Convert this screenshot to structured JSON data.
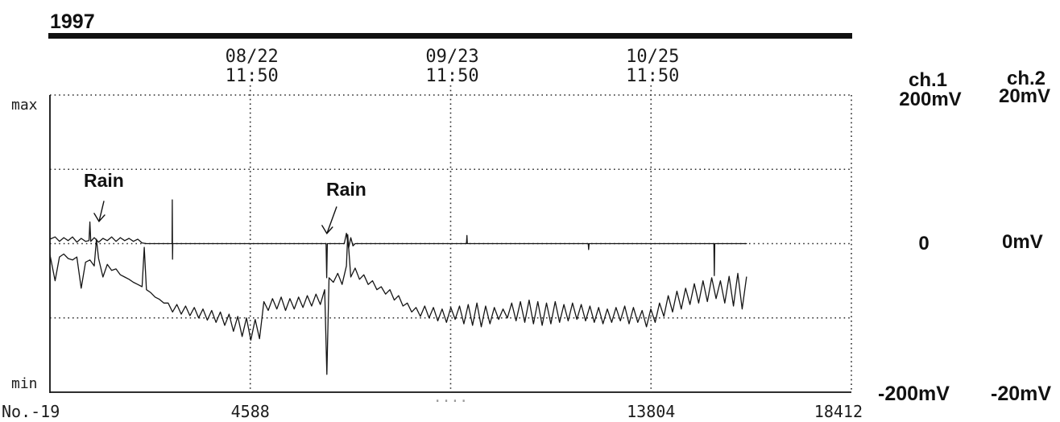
{
  "chart_data": {
    "type": "line",
    "title": "1997",
    "x_range": [
      -19,
      18412
    ],
    "grid": true,
    "legend": "none",
    "y_axis": {
      "max_label": "max",
      "min_label": "min"
    },
    "y_gridlines": [
      200,
      100,
      0,
      -100,
      -200
    ],
    "x_ticks": [
      {
        "value": -19,
        "label": "No.-19"
      },
      {
        "value": 4588,
        "label": "4588"
      },
      {
        "value": 9196,
        "label": "····"
      },
      {
        "value": 13804,
        "label": "13804"
      },
      {
        "value": 18412,
        "label": "18412"
      }
    ],
    "top_ticks": [
      {
        "value": 4588,
        "date": "08/22",
        "time": "11:50"
      },
      {
        "value": 9196,
        "date": "09/23",
        "time": "11:50"
      },
      {
        "value": 13804,
        "date": "10/25",
        "time": "11:50"
      }
    ],
    "annotations": [
      {
        "text": "Rain",
        "x": 1110
      },
      {
        "text": "Rain",
        "x": 6350
      }
    ],
    "series": [
      {
        "name": "ch.1",
        "top_label": "200mV",
        "zero_label": "0",
        "bottom_label": "-200mV",
        "range": [
          -200,
          200
        ],
        "points": [
          [
            -19,
            -15
          ],
          [
            100,
            -50
          ],
          [
            200,
            -18
          ],
          [
            300,
            -14
          ],
          [
            400,
            -20
          ],
          [
            500,
            -22
          ],
          [
            600,
            -18
          ],
          [
            700,
            -60
          ],
          [
            800,
            -25
          ],
          [
            900,
            -22
          ],
          [
            1000,
            -30
          ],
          [
            1050,
            6
          ],
          [
            1100,
            -20
          ],
          [
            1200,
            -45
          ],
          [
            1300,
            -28
          ],
          [
            1400,
            -36
          ],
          [
            1500,
            -34
          ],
          [
            1600,
            -42
          ],
          [
            1700,
            -45
          ],
          [
            1800,
            -48
          ],
          [
            1900,
            -52
          ],
          [
            2000,
            -55
          ],
          [
            2100,
            -58
          ],
          [
            2150,
            -5
          ],
          [
            2200,
            -62
          ],
          [
            2300,
            -66
          ],
          [
            2400,
            -72
          ],
          [
            2500,
            -75
          ],
          [
            2600,
            -80
          ],
          [
            2700,
            -80
          ],
          [
            2800,
            -92
          ],
          [
            2900,
            -82
          ],
          [
            3000,
            -95
          ],
          [
            3100,
            -84
          ],
          [
            3200,
            -97
          ],
          [
            3300,
            -86
          ],
          [
            3400,
            -100
          ],
          [
            3500,
            -88
          ],
          [
            3600,
            -103
          ],
          [
            3700,
            -90
          ],
          [
            3800,
            -106
          ],
          [
            3900,
            -92
          ],
          [
            4000,
            -110
          ],
          [
            4100,
            -95
          ],
          [
            4200,
            -118
          ],
          [
            4300,
            -98
          ],
          [
            4400,
            -125
          ],
          [
            4500,
            -100
          ],
          [
            4600,
            -130
          ],
          [
            4700,
            -102
          ],
          [
            4800,
            -128
          ],
          [
            4900,
            -78
          ],
          [
            5000,
            -90
          ],
          [
            5100,
            -74
          ],
          [
            5200,
            -88
          ],
          [
            5300,
            -72
          ],
          [
            5400,
            -90
          ],
          [
            5500,
            -74
          ],
          [
            5600,
            -88
          ],
          [
            5700,
            -72
          ],
          [
            5800,
            -86
          ],
          [
            5900,
            -70
          ],
          [
            6000,
            -84
          ],
          [
            6100,
            -68
          ],
          [
            6200,
            -82
          ],
          [
            6300,
            -62
          ],
          [
            6350,
            -176
          ],
          [
            6400,
            -46
          ],
          [
            6500,
            -52
          ],
          [
            6600,
            -40
          ],
          [
            6700,
            -55
          ],
          [
            6800,
            -30
          ],
          [
            6830,
            12
          ],
          [
            6900,
            -45
          ],
          [
            7000,
            -33
          ],
          [
            7100,
            -48
          ],
          [
            7200,
            -42
          ],
          [
            7300,
            -55
          ],
          [
            7400,
            -50
          ],
          [
            7500,
            -62
          ],
          [
            7600,
            -58
          ],
          [
            7700,
            -68
          ],
          [
            7800,
            -62
          ],
          [
            7900,
            -76
          ],
          [
            8000,
            -70
          ],
          [
            8100,
            -84
          ],
          [
            8200,
            -80
          ],
          [
            8300,
            -92
          ],
          [
            8400,
            -86
          ],
          [
            8500,
            -98
          ],
          [
            8600,
            -84
          ],
          [
            8700,
            -100
          ],
          [
            8800,
            -86
          ],
          [
            8900,
            -104
          ],
          [
            9000,
            -88
          ],
          [
            9100,
            -106
          ],
          [
            9200,
            -86
          ],
          [
            9300,
            -102
          ],
          [
            9400,
            -84
          ],
          [
            9500,
            -108
          ],
          [
            9600,
            -82
          ],
          [
            9700,
            -110
          ],
          [
            9800,
            -80
          ],
          [
            9900,
            -112
          ],
          [
            10000,
            -84
          ],
          [
            10100,
            -108
          ],
          [
            10200,
            -86
          ],
          [
            10300,
            -102
          ],
          [
            10400,
            -88
          ],
          [
            10500,
            -100
          ],
          [
            10600,
            -80
          ],
          [
            10700,
            -104
          ],
          [
            10800,
            -78
          ],
          [
            10900,
            -106
          ],
          [
            11000,
            -76
          ],
          [
            11100,
            -108
          ],
          [
            11200,
            -78
          ],
          [
            11300,
            -110
          ],
          [
            11400,
            -80
          ],
          [
            11500,
            -108
          ],
          [
            11600,
            -78
          ],
          [
            11700,
            -106
          ],
          [
            11800,
            -82
          ],
          [
            11900,
            -104
          ],
          [
            12000,
            -80
          ],
          [
            12100,
            -102
          ],
          [
            12200,
            -82
          ],
          [
            12300,
            -104
          ],
          [
            12400,
            -84
          ],
          [
            12500,
            -106
          ],
          [
            12600,
            -86
          ],
          [
            12700,
            -108
          ],
          [
            12800,
            -88
          ],
          [
            12900,
            -106
          ],
          [
            13000,
            -86
          ],
          [
            13100,
            -104
          ],
          [
            13200,
            -84
          ],
          [
            13300,
            -108
          ],
          [
            13400,
            -86
          ],
          [
            13500,
            -106
          ],
          [
            13600,
            -90
          ],
          [
            13700,
            -112
          ],
          [
            13800,
            -88
          ],
          [
            13900,
            -106
          ],
          [
            14000,
            -80
          ],
          [
            14100,
            -98
          ],
          [
            14200,
            -70
          ],
          [
            14300,
            -92
          ],
          [
            14400,
            -64
          ],
          [
            14500,
            -88
          ],
          [
            14600,
            -60
          ],
          [
            14700,
            -82
          ],
          [
            14800,
            -54
          ],
          [
            14900,
            -80
          ],
          [
            15000,
            -50
          ],
          [
            15100,
            -78
          ],
          [
            15200,
            -46
          ],
          [
            15300,
            -74
          ],
          [
            15400,
            -50
          ],
          [
            15500,
            -80
          ],
          [
            15600,
            -44
          ],
          [
            15700,
            -84
          ],
          [
            15800,
            -40
          ],
          [
            15900,
            -88
          ],
          [
            16000,
            -45
          ]
        ]
      },
      {
        "name": "ch.2",
        "top_label": "20mV",
        "zero_label": "0mV",
        "bottom_label": "-20mV",
        "range": [
          -20,
          20
        ],
        "points": [
          [
            -19,
            0.6
          ],
          [
            100,
            0.9
          ],
          [
            200,
            0.3
          ],
          [
            300,
            0.8
          ],
          [
            400,
            0.4
          ],
          [
            500,
            0.9
          ],
          [
            600,
            0.2
          ],
          [
            700,
            0.7
          ],
          [
            800,
            0.3
          ],
          [
            880,
            0.4
          ],
          [
            900,
            2.9
          ],
          [
            920,
            0.3
          ],
          [
            1000,
            0.8
          ],
          [
            1100,
            0.2
          ],
          [
            1200,
            0.7
          ],
          [
            1300,
            0.4
          ],
          [
            1400,
            0.9
          ],
          [
            1500,
            0.3
          ],
          [
            1600,
            0.8
          ],
          [
            1700,
            0.4
          ],
          [
            1800,
            0.7
          ],
          [
            1900,
            0.3
          ],
          [
            2000,
            0.6
          ],
          [
            2100,
            0.1
          ],
          [
            2200,
            0
          ],
          [
            2790,
            0
          ],
          [
            2795,
            5.9
          ],
          [
            2800,
            -2.1
          ],
          [
            2805,
            0
          ],
          [
            6330,
            0
          ],
          [
            6345,
            -4.6
          ],
          [
            6360,
            0
          ],
          [
            6750,
            0
          ],
          [
            6800,
            1.4
          ],
          [
            6850,
            -0.6
          ],
          [
            6900,
            0.8
          ],
          [
            6950,
            -0.3
          ],
          [
            7000,
            0
          ],
          [
            9560,
            0
          ],
          [
            9570,
            1.1
          ],
          [
            9580,
            0
          ],
          [
            12360,
            0
          ],
          [
            12370,
            -0.8
          ],
          [
            12380,
            0
          ],
          [
            15250,
            0
          ],
          [
            15260,
            -4.3
          ],
          [
            15270,
            0
          ],
          [
            16000,
            0
          ]
        ]
      }
    ]
  }
}
